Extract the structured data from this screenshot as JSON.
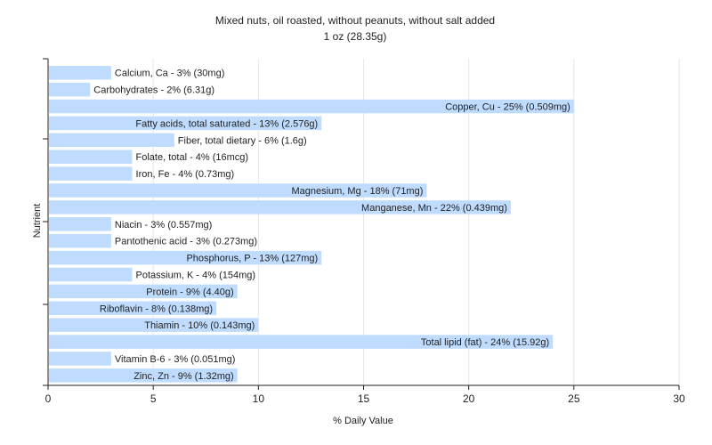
{
  "chart_data": {
    "type": "bar",
    "orientation": "horizontal",
    "title": "Mixed nuts, oil roasted, without peanuts, without salt added",
    "subtitle": "1 oz (28.35g)",
    "xlabel": "% Daily Value",
    "ylabel": "Nutrient",
    "xlim": [
      0,
      30
    ],
    "xticks": [
      "0",
      "5",
      "10",
      "15",
      "20",
      "25",
      "30"
    ],
    "grid": true,
    "bar_color": "#bfdcff",
    "categories": [
      "Calcium, Ca - 3% (30mg)",
      "Carbohydrates - 2% (6.31g)",
      "Copper, Cu - 25% (0.509mg)",
      "Fatty acids, total saturated - 13% (2.576g)",
      "Fiber, total dietary - 6% (1.6g)",
      "Folate, total - 4% (16mcg)",
      "Iron, Fe - 4% (0.73mg)",
      "Magnesium, Mg - 18% (71mg)",
      "Manganese, Mn - 22% (0.439mg)",
      "Niacin - 3% (0.557mg)",
      "Pantothenic acid - 3% (0.273mg)",
      "Phosphorus, P - 13% (127mg)",
      "Potassium, K - 4% (154mg)",
      "Protein - 9% (4.40g)",
      "Riboflavin - 8% (0.138mg)",
      "Thiamin - 10% (0.143mg)",
      "Total lipid (fat) - 24% (15.92g)",
      "Vitamin B-6 - 3% (0.051mg)",
      "Zinc, Zn - 9% (1.32mg)"
    ],
    "values": [
      3,
      2,
      25,
      13,
      6,
      4,
      4,
      18,
      22,
      3,
      3,
      13,
      4,
      9,
      8,
      10,
      24,
      3,
      9
    ]
  }
}
